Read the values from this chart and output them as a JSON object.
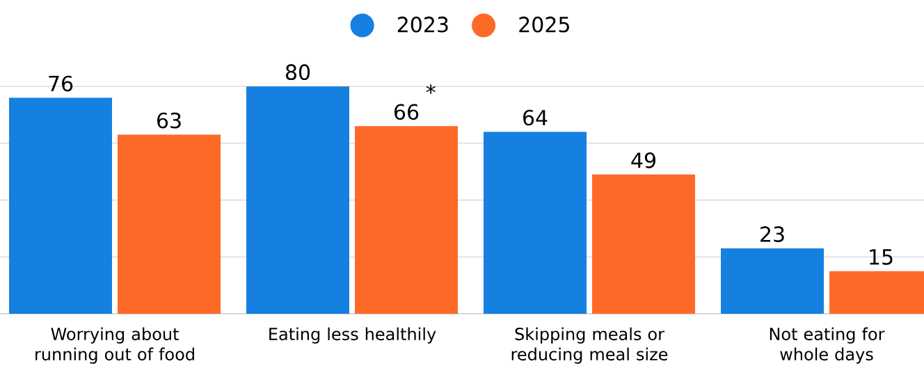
{
  "chart_data": {
    "type": "bar",
    "categories": [
      "Worrying about running out of food",
      "Eating less healthily",
      "Skipping meals or reducing meal size",
      "Not eating for whole days"
    ],
    "series": [
      {
        "name": "2023",
        "color": "#1580e0",
        "values": [
          76,
          80,
          64,
          23
        ]
      },
      {
        "name": "2025",
        "color": "#fd6a28",
        "values": [
          63,
          66,
          49,
          15
        ]
      }
    ],
    "tick_labels": "x",
    "grid": "y",
    "legend": "top",
    "data_labels": true,
    "annotations": [
      "*"
    ]
  }
}
